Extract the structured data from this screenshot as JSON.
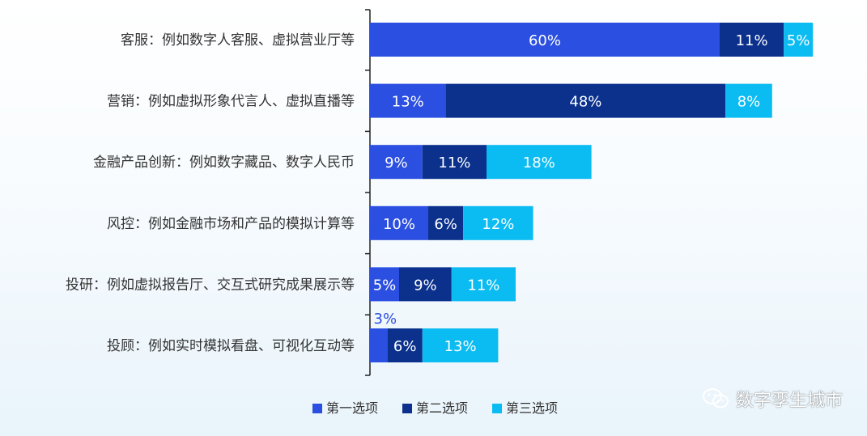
{
  "chart_data": {
    "type": "bar",
    "orientation": "horizontal",
    "stacked": true,
    "title": "",
    "xlabel": "",
    "ylabel": "",
    "unit": "%",
    "xlim": [
      0,
      80
    ],
    "grid": false,
    "legend_position": "bottom-center",
    "categories": [
      "客服：例如数字人客服、虚拟营业厅等",
      "营销：例如虚拟形象代言人、虚拟直播等",
      "金融产品创新：例如数字藏品、数字人民币",
      "风控：例如金融市场和产品的模拟计算等",
      "投研：例如虚拟报告厅、交互式研究成果展示等",
      "投顾：例如实时模拟看盘、可视化互动等"
    ],
    "series": [
      {
        "name": "第一选项",
        "color": "#2b4fe0",
        "values": [
          60,
          13,
          9,
          10,
          5,
          3
        ]
      },
      {
        "name": "第二选项",
        "color": "#0b318c",
        "values": [
          11,
          48,
          11,
          6,
          9,
          6
        ]
      },
      {
        "name": "第三选项",
        "color": "#0bbcf2",
        "values": [
          5,
          8,
          18,
          12,
          11,
          13
        ]
      }
    ],
    "data_labels": [
      [
        "60%",
        "11%",
        "5%"
      ],
      [
        "13%",
        "48%",
        "8%"
      ],
      [
        "9%",
        "11%",
        "18%"
      ],
      [
        "10%",
        "6%",
        "12%"
      ],
      [
        "5%",
        "9%",
        "11%"
      ],
      [
        "3%",
        "6%",
        "13%"
      ]
    ],
    "outside_label_color": "#2b4fe0"
  },
  "watermark": {
    "text": "数字孪生城市",
    "icon": "wechat-icon"
  }
}
